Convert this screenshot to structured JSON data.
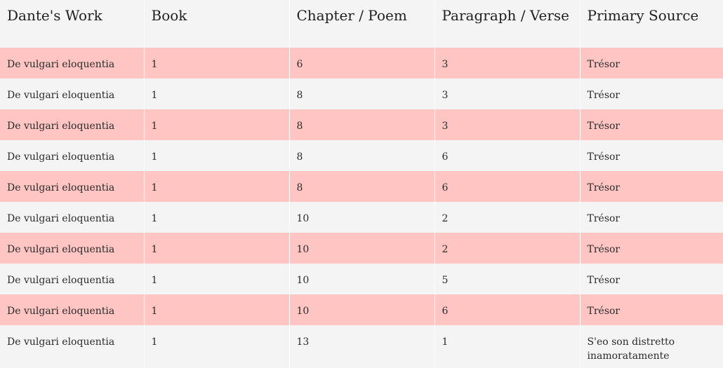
{
  "table": {
    "headers": [
      "Dante's Work",
      "Book",
      "Chapter / Poem",
      "Paragraph / Verse",
      "Primary Source"
    ],
    "rows": [
      [
        "De vulgari eloquentia",
        "1",
        "6",
        "3",
        "Trésor"
      ],
      [
        "De vulgari eloquentia",
        "1",
        "8",
        "3",
        "Trésor"
      ],
      [
        "De vulgari eloquentia",
        "1",
        "8",
        "3",
        "Trésor"
      ],
      [
        "De vulgari eloquentia",
        "1",
        "8",
        "6",
        "Trésor"
      ],
      [
        "De vulgari eloquentia",
        "1",
        "8",
        "6",
        "Trésor"
      ],
      [
        "De vulgari eloquentia",
        "1",
        "10",
        "2",
        "Trésor"
      ],
      [
        "De vulgari eloquentia",
        "1",
        "10",
        "2",
        "Trésor"
      ],
      [
        "De vulgari eloquentia",
        "1",
        "10",
        "5",
        "Trésor"
      ],
      [
        "De vulgari eloquentia",
        "1",
        "10",
        "6",
        "Trésor"
      ],
      [
        "De vulgari eloquentia",
        "1",
        "13",
        "1",
        "S'eo son distretto inamoratamente"
      ]
    ]
  },
  "colors": {
    "highlight_row": "#ffc5c2",
    "plain_row": "#f4f4f4"
  }
}
